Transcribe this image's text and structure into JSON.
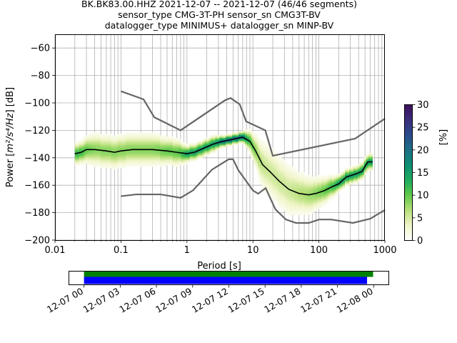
{
  "title": {
    "lines": [
      "BK.BK83.00.HHZ   2021-12-07 -- 2021-12-07  (46/46 segments)",
      "sensor_type CMG-3T-PH sensor_sn CMG3T-BV",
      "datalogger_type MINIMUS+ datalogger_sn MINP-BV"
    ]
  },
  "chart_data": [
    {
      "type": "heatmap",
      "xlabel": "Period [s]",
      "ylabel_prefix": "Power [",
      "ylabel_units": "m²/s⁴/Hz",
      "ylabel_suffix": "] [dB]",
      "x_scale": "log",
      "xlim": [
        0.01,
        1000
      ],
      "ylim": [
        -200,
        -50
      ],
      "x_ticks": [
        {
          "value": 0.01,
          "label": "0.01"
        },
        {
          "value": 0.1,
          "label": "0.1"
        },
        {
          "value": 1,
          "label": "1"
        },
        {
          "value": 10,
          "label": "10"
        },
        {
          "value": 100,
          "label": "100"
        },
        {
          "value": 1000,
          "label": "1000"
        }
      ],
      "y_ticks": [
        {
          "value": -60,
          "label": "−60"
        },
        {
          "value": -80,
          "label": "−80"
        },
        {
          "value": -100,
          "label": "−100"
        },
        {
          "value": -120,
          "label": "−120"
        },
        {
          "value": -140,
          "label": "−140"
        },
        {
          "value": -160,
          "label": "−160"
        },
        {
          "value": -180,
          "label": "−180"
        },
        {
          "value": -200,
          "label": "−200"
        }
      ],
      "grid": true,
      "mean_psd": {
        "period": [
          0.02,
          0.025,
          0.03,
          0.04,
          0.06,
          0.08,
          0.1,
          0.15,
          0.2,
          0.3,
          0.5,
          0.7,
          1.0,
          1.3,
          1.8,
          2.5,
          3.5,
          4.5,
          5.5,
          7,
          9,
          11,
          14,
          18,
          25,
          35,
          50,
          70,
          90,
          120,
          160,
          200,
          260,
          350,
          450,
          550,
          650
        ],
        "power": [
          -137,
          -136,
          -134,
          -134,
          -135,
          -136,
          -135,
          -134,
          -134,
          -134,
          -135,
          -136,
          -137,
          -136,
          -133,
          -130,
          -128,
          -127,
          -126,
          -125,
          -128,
          -135,
          -145,
          -150,
          -157,
          -163,
          -166,
          -167,
          -166,
          -164,
          -161,
          -159,
          -154,
          -152,
          -150,
          -143,
          -143
        ]
      },
      "density_spread_db": [
        4,
        4,
        5,
        6,
        6,
        6,
        6,
        6,
        6,
        6,
        5,
        5,
        3,
        3,
        3,
        3,
        2,
        2,
        2,
        2,
        4,
        6,
        9,
        10,
        10,
        10,
        8,
        7,
        6,
        5,
        4,
        3,
        3,
        3,
        3,
        3,
        3
      ],
      "noise_model_high": {
        "period": [
          0.1,
          0.22,
          0.32,
          0.8,
          3.8,
          4.6,
          6.3,
          7.9,
          15.4,
          20,
          354.8,
          1000
        ],
        "power": [
          -91.5,
          -97.4,
          -110.5,
          -120,
          -98,
          -96.5,
          -101,
          -113.5,
          -120,
          -138.5,
          -126,
          -111.5
        ]
      },
      "noise_model_low": {
        "period": [
          0.1,
          0.17,
          0.4,
          0.8,
          1.24,
          2.4,
          4.3,
          5,
          6,
          10,
          12,
          15.6,
          21.9,
          31.6,
          45,
          70,
          101,
          154,
          328,
          600,
          1000
        ],
        "power": [
          -168,
          -166.7,
          -166.7,
          -169.2,
          -163.7,
          -148.6,
          -141.1,
          -141.1,
          -149,
          -163.8,
          -166.2,
          -162.1,
          -177.5,
          -185,
          -187.5,
          -187.5,
          -185,
          -185,
          -187.5,
          -184.4,
          -178
        ]
      },
      "colorbar": {
        "label": "[%]",
        "min": 0,
        "max": 30,
        "ticks": [
          0,
          5,
          10,
          15,
          20,
          25,
          30
        ],
        "colors": [
          "#ffffff",
          "#f1f5c8",
          "#b7e07a",
          "#5fc94a",
          "#1fab5e",
          "#0e8f74",
          "#1b6f86",
          "#2b4b8a",
          "#3a2d7a",
          "#3d0f5c"
        ]
      },
      "series_colors": {
        "mean": "#000000",
        "noise_models": "#666666"
      }
    },
    {
      "type": "bar",
      "description_role": "data coverage",
      "time_range": [
        "2021-12-07 00:00",
        "2021-12-08 00:00"
      ],
      "axis_start": "2021-12-06 22:45",
      "axis_end": "2021-12-08 01:15",
      "tick_labels": [
        "12-07 00",
        "12-07 03",
        "12-07 06",
        "12-07 09",
        "12-07 12",
        "12-07 15",
        "12-07 18",
        "12-07 21",
        "12-08 00"
      ],
      "tick_hours": [
        0,
        3,
        6,
        9,
        12,
        15,
        18,
        21,
        24
      ],
      "series": [
        {
          "color": "#008000",
          "start_hour": 0,
          "end_hour": 23.95
        },
        {
          "color": "#0000ff",
          "start_hour": 0,
          "end_hour": 23.45
        }
      ]
    }
  ]
}
